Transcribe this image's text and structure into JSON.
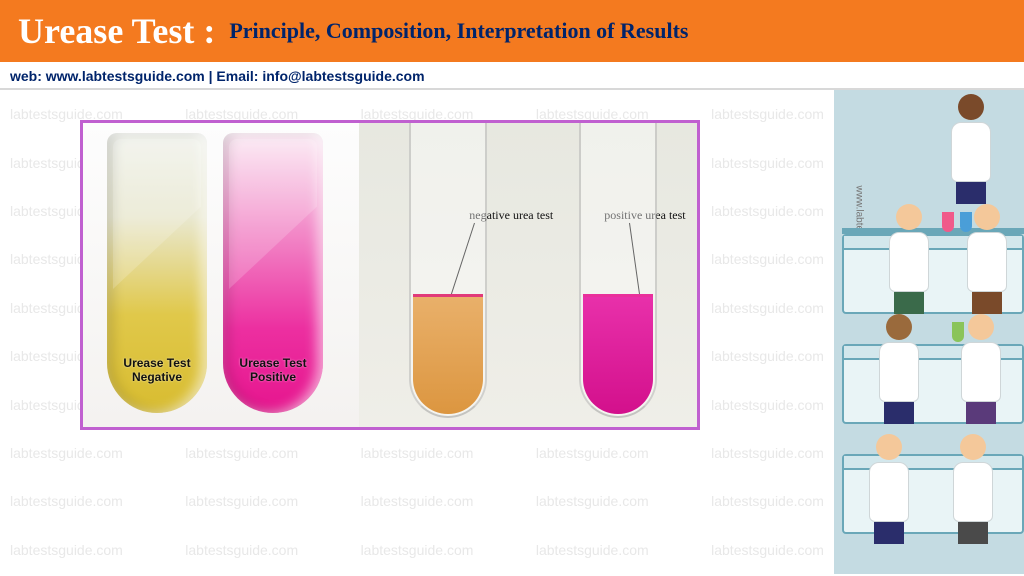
{
  "header": {
    "title": "Urease Test :",
    "subtitle": "Principle, Composition, Interpretation of Results",
    "bg_color": "#f47a1f",
    "subtitle_color": "#00246b"
  },
  "contact": {
    "text": "web:  www.labtestsguide.com   |  Email: info@labtestsguide.com",
    "color": "#00246b"
  },
  "watermark": {
    "text": "labtestsguide.com",
    "rows": 10,
    "cols": 5
  },
  "figure": {
    "panel_left": {
      "neg": {
        "label_line1": "Urease Test",
        "label_line2": "Negative",
        "color": "#d8bc30"
      },
      "pos": {
        "label_line1": "Urease Test",
        "label_line2": "Positive",
        "color": "#e6158e"
      }
    },
    "panel_right": {
      "neg": {
        "callout": "negative urea test",
        "broth_color": "#dc9640"
      },
      "pos": {
        "callout": "positive urea test",
        "broth_color": "#d3108c"
      }
    },
    "border_color": "#c060d0"
  },
  "sidebar": {
    "bg_color": "#c4dbe2",
    "vertical_text": "www.labtestsguide.com",
    "skin_tones": [
      "#7a4a2a",
      "#f4c89a",
      "#f4c89a",
      "#9a6a3c",
      "#f4c89a",
      "#f4c89a",
      "#f4c89a"
    ],
    "leg_colors": [
      "#2a2d6b",
      "#3a6a4a",
      "#7a4a2a",
      "#2a2d6b",
      "#5a3a7a",
      "#2a2d6b",
      "#4a4a4a"
    ]
  }
}
